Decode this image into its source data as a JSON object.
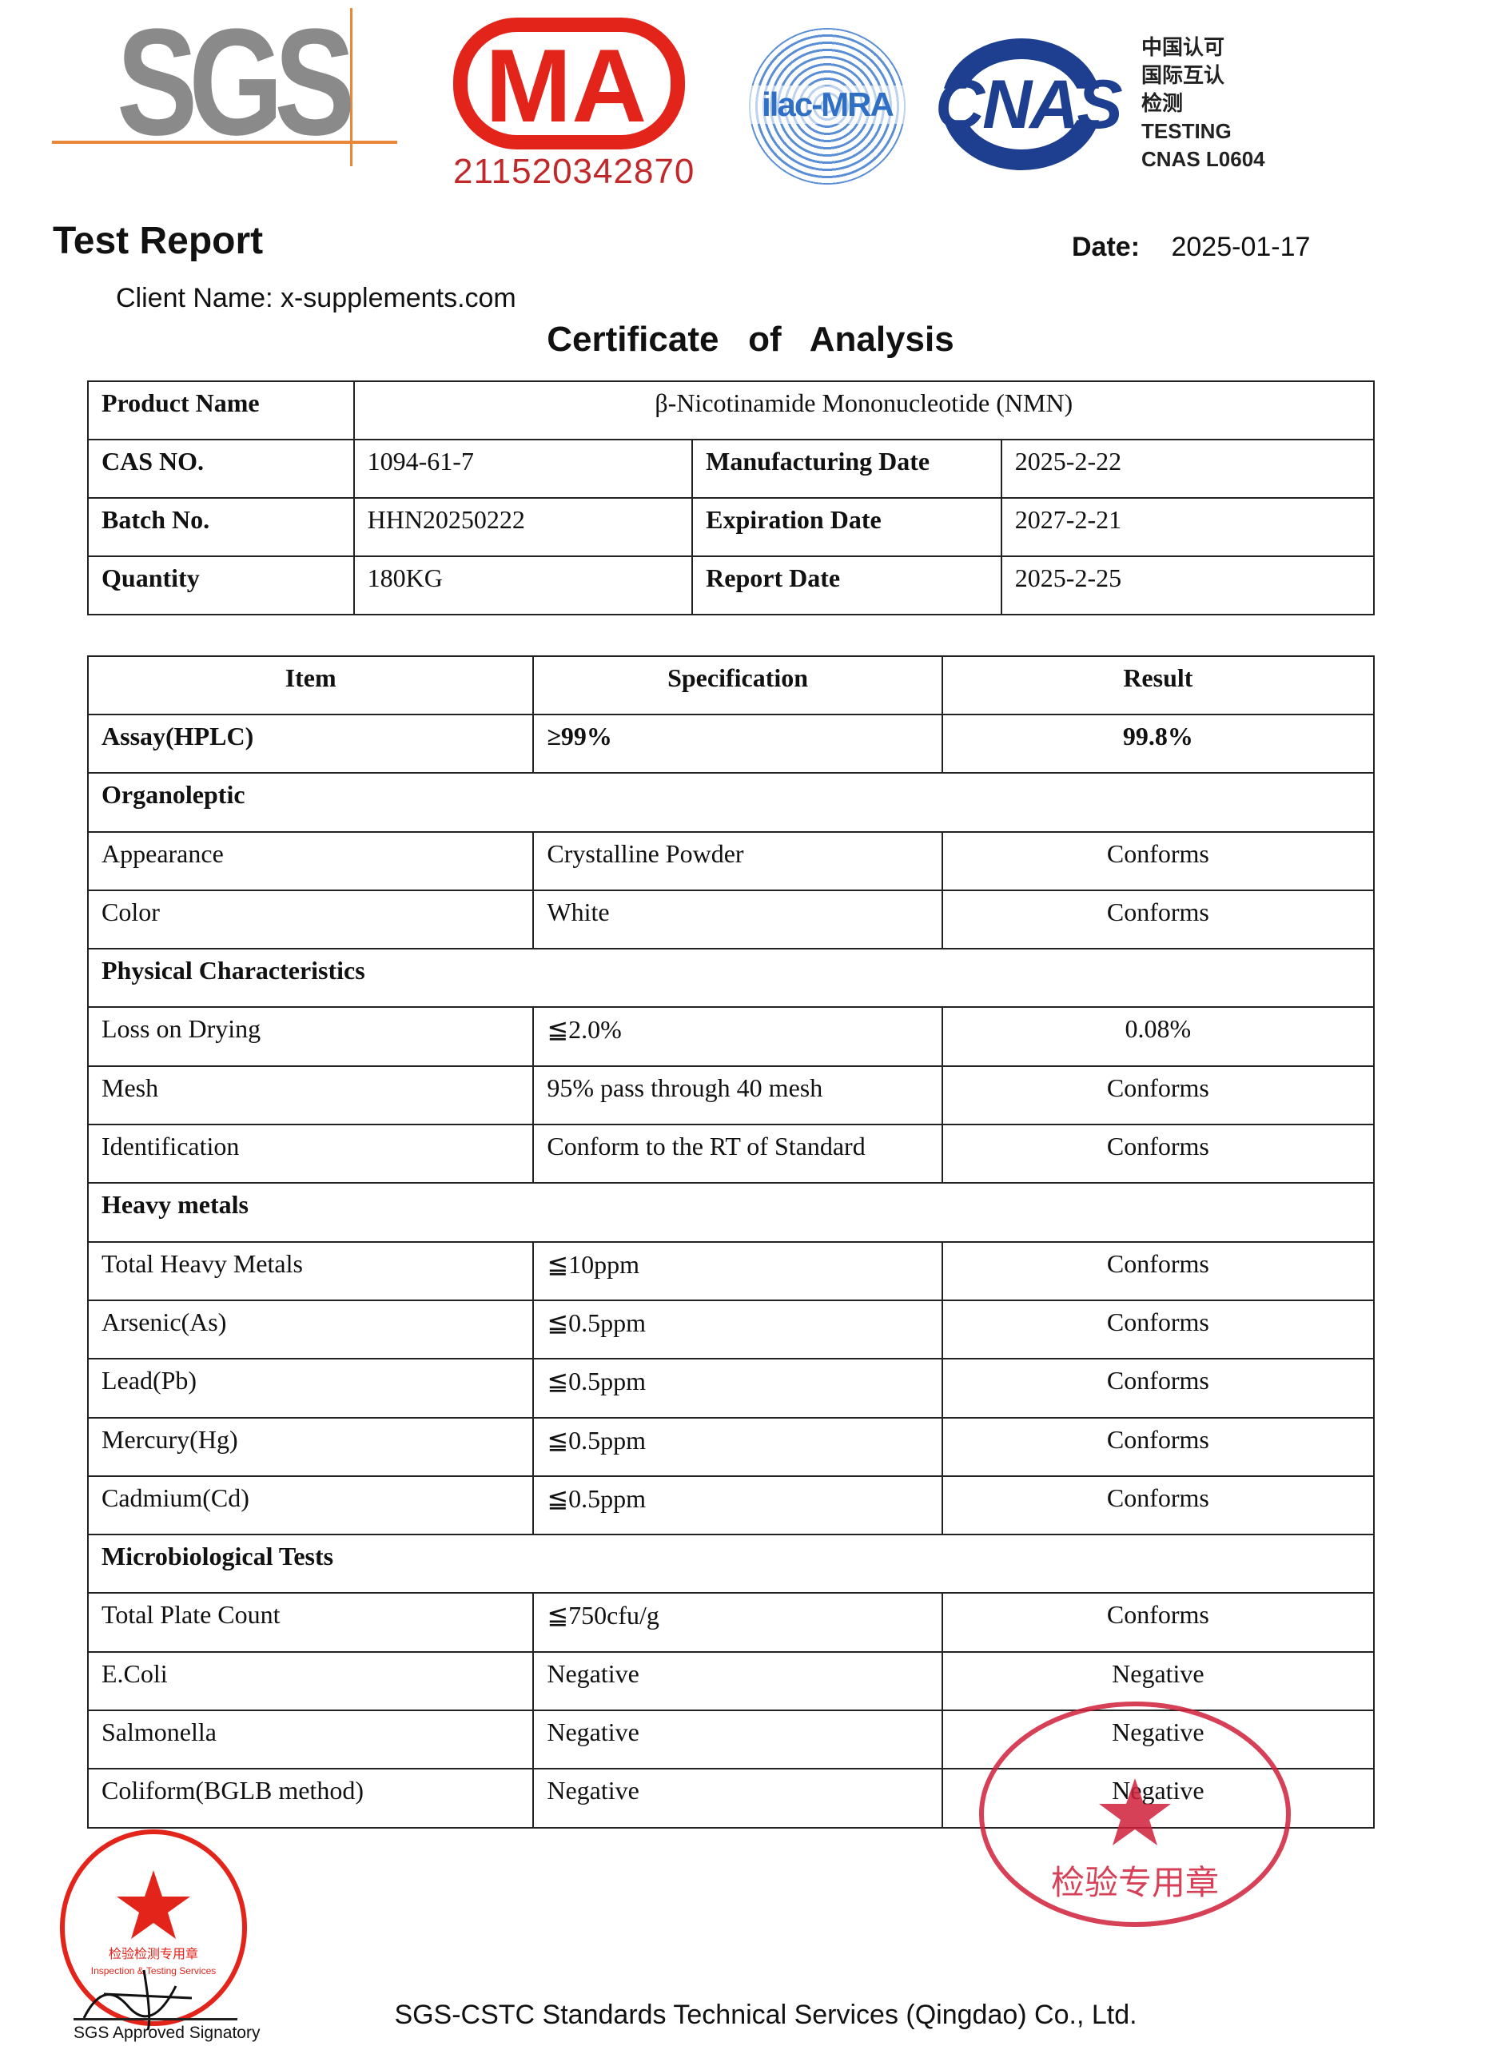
{
  "logos": {
    "sgs": "SGS",
    "cma": "MA",
    "cma_number": "211520342870",
    "ilac": "ilac-MRA",
    "cnas": "CNAS",
    "cnas_text": [
      "中国认可",
      "国际互认",
      "检测",
      "TESTING",
      "CNAS L0604"
    ]
  },
  "header": {
    "title": "Test Report",
    "date_label": "Date:",
    "date": "2025-01-17",
    "client_label": "Client Name:",
    "client": "x-supplements.com",
    "certificate_title": "Certificate   of   Analysis"
  },
  "product": {
    "product_name_label": "Product Name",
    "product_name": "β-Nicotinamide Mononucleotide (NMN)",
    "rows": [
      {
        "l1": "CAS NO.",
        "v1": "1094-61-7",
        "l2": "Manufacturing Date",
        "v2": "2025-2-22"
      },
      {
        "l1": "Batch No.",
        "v1": "HHN20250222",
        "l2": "Expiration Date",
        "v2": "2027-2-21"
      },
      {
        "l1": "Quantity",
        "v1": "180KG",
        "l2": "Report Date",
        "v2": "2025-2-25"
      }
    ]
  },
  "analysis": {
    "headers": [
      "Item",
      "Specification",
      "Result"
    ],
    "rows": [
      {
        "item": "Assay(HPLC)",
        "spec": "≥99%",
        "result": "99.8%",
        "bold": true
      },
      {
        "section": "Organoleptic"
      },
      {
        "item": "Appearance",
        "spec": "Crystalline Powder",
        "result": "Conforms"
      },
      {
        "item": "Color",
        "spec": "White",
        "result": "Conforms"
      },
      {
        "section": "Physical Characteristics"
      },
      {
        "item": "Loss on Drying",
        "spec": "≦2.0%",
        "result": "0.08%"
      },
      {
        "item": "Mesh",
        "spec": "95% pass through 40 mesh",
        "result": "Conforms"
      },
      {
        "item": "Identification",
        "spec": "Conform to the RT of Standard",
        "result": "Conforms"
      },
      {
        "section": "Heavy metals"
      },
      {
        "item": "Total Heavy Metals",
        "spec": "≦10ppm",
        "result": "Conforms"
      },
      {
        "item": "Arsenic(As)",
        "spec": "≦0.5ppm",
        "result": "Conforms"
      },
      {
        "item": "Lead(Pb)",
        "spec": "≦0.5ppm",
        "result": "Conforms"
      },
      {
        "item": "Mercury(Hg)",
        "spec": "≦0.5ppm",
        "result": "Conforms"
      },
      {
        "item": "Cadmium(Cd)",
        "spec": "≦0.5ppm",
        "result": "Conforms"
      },
      {
        "section": "Microbiological Tests"
      },
      {
        "item": "Total Plate Count",
        "spec": "≦750cfu/g",
        "result": "Conforms"
      },
      {
        "item": "E.Coli",
        "spec": "Negative",
        "result": "Negative"
      },
      {
        "item": "Salmonella",
        "spec": "Negative",
        "result": "Negative"
      },
      {
        "item": "Coliform(BGLB method)",
        "spec": "Negative",
        "result": "Negative"
      }
    ]
  },
  "stamps": {
    "left_text": "检验检测专用章",
    "left_text_en": "Inspection & Testing Services",
    "right_text": "检验专用章"
  },
  "footer": {
    "signatory": "SGS Approved Signatory",
    "company": "SGS-CSTC Standards Technical Services (Qingdao) Co., Ltd."
  }
}
